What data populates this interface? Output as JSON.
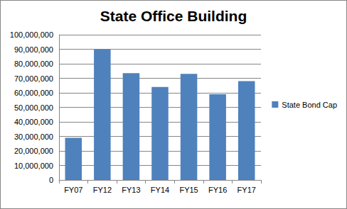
{
  "chart_data": {
    "type": "bar",
    "title": "State Office Building",
    "categories": [
      "FY07",
      "FY12",
      "FY13",
      "FY14",
      "FY15",
      "FY16",
      "FY17"
    ],
    "series": [
      {
        "name": "State Bond Cap",
        "color": "#4f81bd",
        "values": [
          29000000,
          90000000,
          73500000,
          64000000,
          73000000,
          59000000,
          68000000
        ]
      }
    ],
    "ylim": [
      0,
      100000000
    ],
    "yticks": [
      0,
      {
        "value": 10000000,
        "label": "10,000,000"
      },
      {
        "value": 20000000,
        "label": "20,000,000"
      },
      {
        "value": 30000000,
        "label": "30,000,000"
      },
      {
        "value": 40000000,
        "label": "40,000,000"
      },
      {
        "value": 50000000,
        "label": "50,000,000"
      },
      {
        "value": 60000000,
        "label": "60,000,000"
      },
      {
        "value": 70000000,
        "label": "70,000,000"
      },
      {
        "value": 80000000,
        "label": "80,000,000"
      },
      {
        "value": 90000000,
        "label": "90,000,000"
      },
      {
        "value": 100000000,
        "label": "100,000,000"
      }
    ],
    "grid": true,
    "legend": "right"
  }
}
